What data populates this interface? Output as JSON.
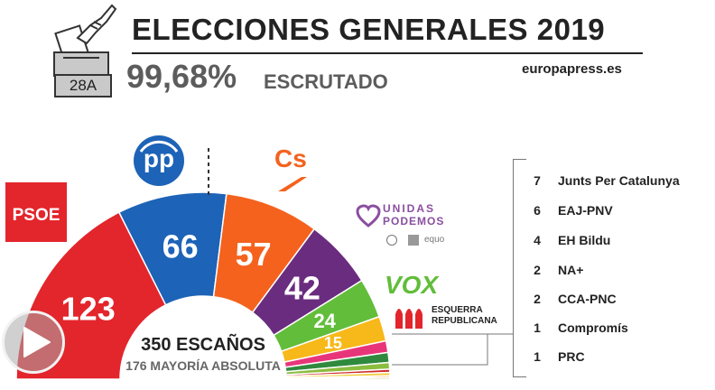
{
  "header": {
    "title": "ELECCIONES GENERALES 2019",
    "scrutiny_value": "99,68%",
    "scrutiny_label": "ESCRUTADO",
    "source": "europapress.es",
    "ballot_date": "28A"
  },
  "chart_data": {
    "type": "parliament-hemicycle",
    "total_seats_label": "350 ESCAÑOS",
    "majority_label": "176 MAYORÍA ABSOLUTA",
    "total_seats": 350,
    "majority": 176,
    "series": [
      {
        "name": "PSOE",
        "seats": 123,
        "label": "123",
        "color": "#e3252c"
      },
      {
        "name": "PP",
        "seats": 66,
        "label": "66",
        "color": "#1d63b7"
      },
      {
        "name": "Cs",
        "seats": 57,
        "label": "57",
        "color": "#f4621e"
      },
      {
        "name": "UNIDAS PODEMOS",
        "seats": 42,
        "label": "42",
        "color": "#6a2c7f"
      },
      {
        "name": "VOX",
        "seats": 24,
        "label": "24",
        "color": "#62bd3a"
      },
      {
        "name": "ESQUERRA REPUBLICANA",
        "seats": 15,
        "label": "15",
        "color": "#f7b81a"
      },
      {
        "name": "Junts Per Catalunya",
        "seats": 7,
        "color": "#e8357a"
      },
      {
        "name": "EAJ-PNV",
        "seats": 6,
        "color": "#2f8a3d"
      },
      {
        "name": "EH Bildu",
        "seats": 4,
        "color": "#8bbd3f"
      },
      {
        "name": "NA+",
        "seats": 2,
        "color": "#d12b2b"
      },
      {
        "name": "CCA-PNC",
        "seats": 2,
        "color": "#f2cd3b"
      },
      {
        "name": "Compromís",
        "seats": 1,
        "color": "#e8873a"
      },
      {
        "name": "PRC",
        "seats": 1,
        "color": "#9bc33a"
      }
    ]
  },
  "others": [
    {
      "seats": "7",
      "name": "Junts Per Catalunya"
    },
    {
      "seats": "6",
      "name": "EAJ-PNV"
    },
    {
      "seats": "4",
      "name": "EH Bildu"
    },
    {
      "seats": "2",
      "name": "NA+"
    },
    {
      "seats": "2",
      "name": "CCA-PNC"
    },
    {
      "seats": "1",
      "name": "Compromís"
    },
    {
      "seats": "1",
      "name": "PRC"
    }
  ],
  "logos": {
    "psoe": "PSOE",
    "pp": "pp",
    "cs": "Cs",
    "podemos_line1": "UNIDAS",
    "podemos_line2": "PODEMOS",
    "podemos_sub": "equo",
    "vox": "VOX",
    "erc_line1": "ESQUERRA",
    "erc_line2": "REPUBLICANA"
  },
  "icons": {
    "ballot_box": "ballot-box-icon",
    "play": "play-icon"
  }
}
